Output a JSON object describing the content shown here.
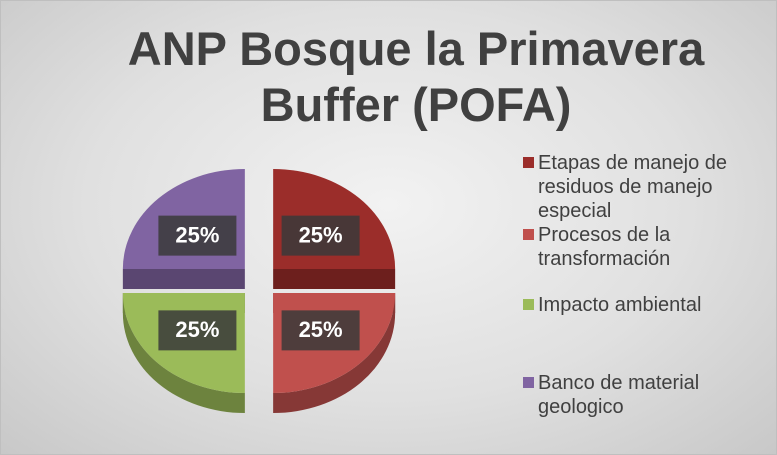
{
  "chart_data": {
    "type": "pie",
    "title": "ANP Bosque la Primavera Buffer (POFA)",
    "categories": [
      "Etapas de manejo de residuos de manejo especial",
      "Procesos de la transformación",
      "Impacto ambiental",
      "Banco de material geologico"
    ],
    "values": [
      25,
      25,
      25,
      25
    ],
    "value_labels": [
      "25%",
      "25%",
      "25%",
      "25%"
    ],
    "colors": [
      "#9b2d2a",
      "#c0504d",
      "#9bbb59",
      "#8064a2"
    ],
    "legend": "right"
  }
}
